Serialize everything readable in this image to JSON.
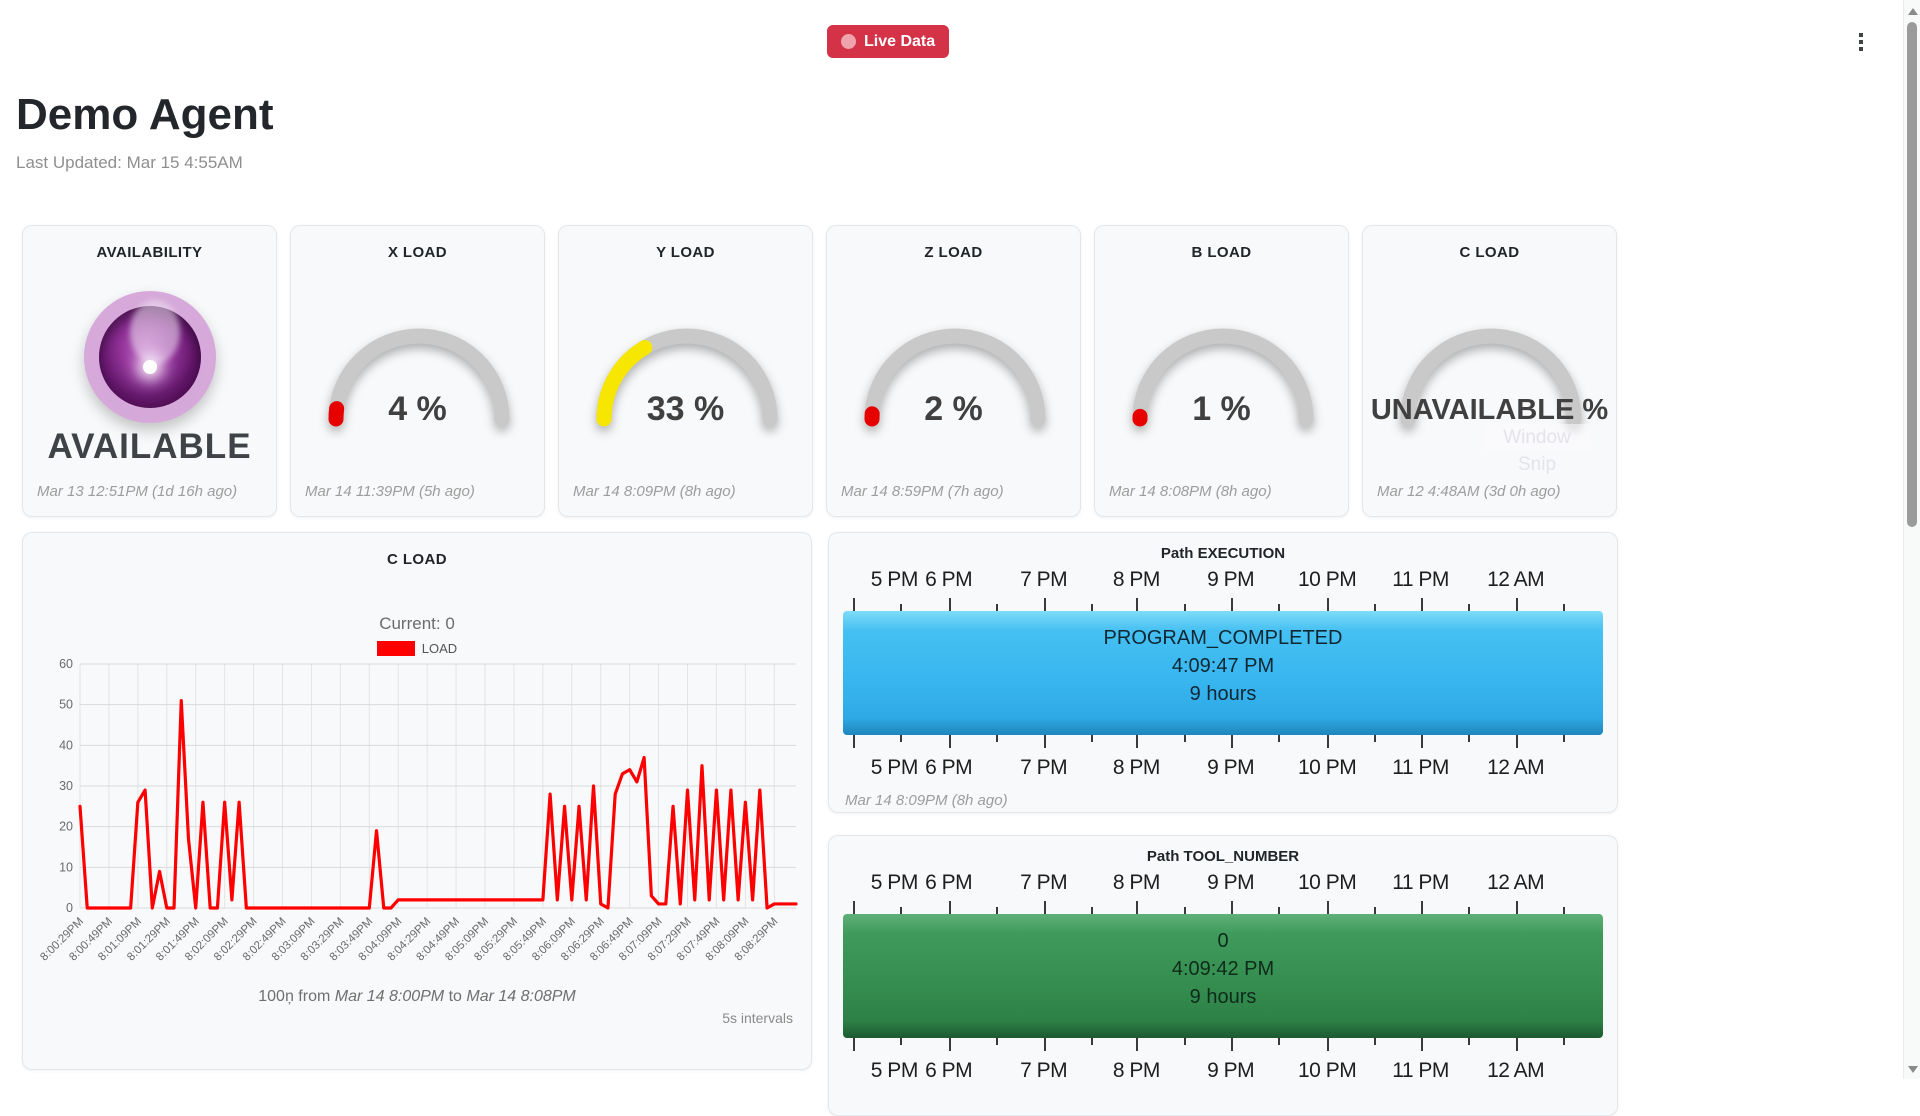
{
  "header": {
    "live_badge_label": "Live Data",
    "menu_icon": "kebab-menu-icon"
  },
  "page": {
    "title": "Demo Agent",
    "last_updated": "Last Updated: Mar 15 4:55AM"
  },
  "colors": {
    "badge_bg": "#d43247",
    "badge_dot": "#efa3ad",
    "chart_line": "#ff0000",
    "gauge_track": "#c9c9c9",
    "gauge_red": "#e60000",
    "gauge_yellow": "#f7e600",
    "orb_ring": "#d6a9da",
    "timeline_blue": "#38b6ef",
    "timeline_green": "#358e50"
  },
  "gauges": [
    {
      "title": "AVAILABILITY",
      "type": "orb",
      "value_label": "AVAILABLE",
      "timestamp": "Mar 13 12:51PM (1d 16h ago)"
    },
    {
      "title": "X LOAD",
      "type": "gauge",
      "percent": 4,
      "value_label": "4 %",
      "color": "#e60000",
      "timestamp": "Mar 14 11:39PM (5h ago)"
    },
    {
      "title": "Y LOAD",
      "type": "gauge",
      "percent": 33,
      "value_label": "33 %",
      "color": "#f7e600",
      "timestamp": "Mar 14 8:09PM (8h ago)"
    },
    {
      "title": "Z LOAD",
      "type": "gauge",
      "percent": 2,
      "value_label": "2 %",
      "color": "#e60000",
      "timestamp": "Mar 14 8:59PM (7h ago)"
    },
    {
      "title": "B LOAD",
      "type": "gauge",
      "percent": 1,
      "value_label": "1 %",
      "color": "#e60000",
      "timestamp": "Mar 14 8:08PM (8h ago)"
    },
    {
      "title": "C LOAD",
      "type": "gauge",
      "percent": 0,
      "value_label": "UNAVAILABLE %",
      "color": null,
      "timestamp": "Mar 12 4:48AM (3d 0h ago)"
    }
  ],
  "chart_data": {
    "type": "line",
    "title": "C LOAD",
    "current_label": "Current: 0",
    "legend": [
      {
        "label": "LOAD",
        "color": "#ff0000"
      }
    ],
    "legend_position": "top",
    "grid": true,
    "ylim": [
      0,
      60
    ],
    "yticks": [
      0,
      10,
      20,
      30,
      40,
      50,
      60
    ],
    "interval": "5s",
    "n_points": 100,
    "x_tick_labels": [
      "8:00:29PM",
      "8:00:49PM",
      "8:01:09PM",
      "8:01:29PM",
      "8:01:49PM",
      "8:02:09PM",
      "8:02:29PM",
      "8:02:49PM",
      "8:03:09PM",
      "8:03:29PM",
      "8:03:49PM",
      "8:04:09PM",
      "8:04:29PM",
      "8:04:49PM",
      "8:05:09PM",
      "8:05:29PM",
      "8:05:49PM",
      "8:06:09PM",
      "8:06:29PM",
      "8:06:49PM",
      "8:07:09PM",
      "8:07:29PM",
      "8:07:49PM",
      "8:08:09PM",
      "8:08:29PM"
    ],
    "values": [
      25,
      0,
      0,
      0,
      0,
      0,
      0,
      0,
      26,
      29,
      0,
      9,
      0,
      0,
      51,
      17,
      0,
      26,
      0,
      0,
      26,
      2,
      26,
      0,
      0,
      0,
      0,
      0,
      0,
      0,
      0,
      0,
      0,
      0,
      0,
      0,
      0,
      0,
      0,
      0,
      0,
      19,
      0,
      0,
      2,
      2,
      2,
      2,
      2,
      2,
      2,
      2,
      2,
      2,
      2,
      2,
      2,
      2,
      2,
      2,
      2,
      2,
      2,
      2,
      2,
      28,
      2,
      25,
      2,
      25,
      2,
      30,
      1,
      0,
      28,
      33,
      34,
      31,
      37,
      3,
      1,
      1,
      25,
      1,
      29,
      2,
      35,
      2,
      29,
      2,
      29,
      2,
      26,
      2,
      29,
      0,
      1,
      1,
      1,
      1
    ],
    "caption_parts": [
      "100ņ from ",
      "Mar 14 8:00PM",
      " to ",
      "Mar 14 8:08PM"
    ],
    "footnote": "5s intervals"
  },
  "timelines": [
    {
      "title": "Path EXECUTION",
      "axis_labels": [
        "5 PM",
        "6 PM",
        "7 PM",
        "8 PM",
        "9 PM",
        "10 PM",
        "11 PM",
        "12 AM"
      ],
      "bar_lines": [
        "PROGRAM_COMPLETED",
        "4:09:47 PM",
        "9 hours"
      ],
      "bar_color": "#38b6ef",
      "timestamp": "Mar 14 8:09PM (8h ago)"
    },
    {
      "title": "Path TOOL_NUMBER",
      "axis_labels": [
        "5 PM",
        "6 PM",
        "7 PM",
        "8 PM",
        "9 PM",
        "10 PM",
        "11 PM",
        "12 AM"
      ],
      "bar_lines": [
        "0",
        "4:09:42 PM",
        "9 hours"
      ],
      "bar_color": "#358e50",
      "timestamp": ""
    }
  ],
  "watermark": "Window Snip"
}
